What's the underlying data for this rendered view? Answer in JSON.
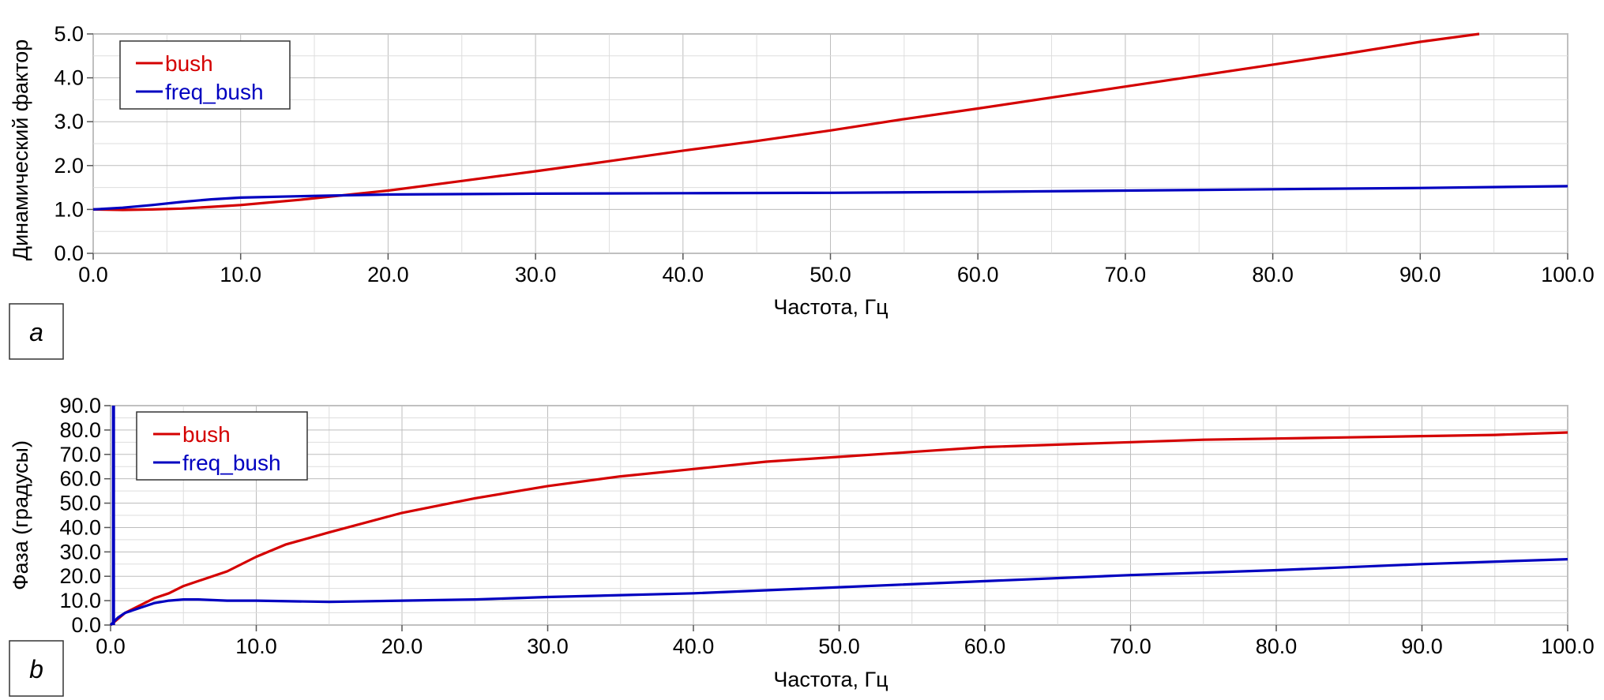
{
  "chart_data": [
    {
      "panel_label": "a",
      "type": "line",
      "xlabel": "Частота, Гц",
      "ylabel": "Динамический фактор",
      "xlim": [
        0,
        100
      ],
      "ylim": [
        0,
        5
      ],
      "x_ticks": [
        "0.0",
        "10.0",
        "20.0",
        "30.0",
        "40.0",
        "50.0",
        "60.0",
        "70.0",
        "80.0",
        "90.0",
        "100.0"
      ],
      "y_ticks": [
        "0.0",
        "1.0",
        "2.0",
        "3.0",
        "4.0",
        "5.0"
      ],
      "grid": true,
      "legend_position": "top-left",
      "series": [
        {
          "name": "bush",
          "color": "#d40000",
          "x": [
            0,
            2,
            4,
            6,
            8,
            10,
            12,
            14,
            16,
            18,
            20,
            25,
            30,
            35,
            40,
            45,
            50,
            55,
            60,
            65,
            70,
            75,
            80,
            85,
            90,
            94
          ],
          "y": [
            1.0,
            0.99,
            1.0,
            1.02,
            1.06,
            1.1,
            1.16,
            1.22,
            1.29,
            1.36,
            1.43,
            1.65,
            1.87,
            2.1,
            2.34,
            2.56,
            2.8,
            3.06,
            3.3,
            3.55,
            3.8,
            4.05,
            4.3,
            4.55,
            4.82,
            5.0
          ]
        },
        {
          "name": "freq_bush",
          "color": "#0000c0",
          "x": [
            0,
            2,
            4,
            6,
            8,
            10,
            15,
            20,
            30,
            40,
            50,
            60,
            70,
            80,
            90,
            100
          ],
          "y": [
            1.0,
            1.04,
            1.1,
            1.17,
            1.23,
            1.27,
            1.31,
            1.34,
            1.36,
            1.37,
            1.38,
            1.4,
            1.43,
            1.46,
            1.49,
            1.53
          ]
        }
      ]
    },
    {
      "panel_label": "b",
      "type": "line",
      "xlabel": "Частота, Гц",
      "ylabel": "Фаза (градусы)",
      "xlim": [
        0,
        100
      ],
      "ylim": [
        0,
        90
      ],
      "x_ticks": [
        "0.0",
        "10.0",
        "20.0",
        "30.0",
        "40.0",
        "50.0",
        "60.0",
        "70.0",
        "80.0",
        "90.0",
        "100.0"
      ],
      "y_ticks": [
        "0.0",
        "10.0",
        "20.0",
        "30.0",
        "40.0",
        "50.0",
        "60.0",
        "70.0",
        "80.0",
        "90.0"
      ],
      "grid": true,
      "legend_position": "top-left",
      "series": [
        {
          "name": "bush",
          "color": "#d40000",
          "x": [
            0,
            1,
            2,
            3,
            4,
            5,
            6,
            8,
            10,
            12,
            15,
            20,
            25,
            30,
            35,
            40,
            45,
            50,
            55,
            60,
            65,
            70,
            75,
            80,
            85,
            90,
            95,
            100
          ],
          "y": [
            0,
            5,
            8,
            11,
            13,
            16,
            18,
            22,
            28,
            33,
            38,
            46,
            52,
            57,
            61,
            64,
            67,
            69,
            71,
            73,
            74,
            75,
            76,
            76.5,
            77,
            77.5,
            78,
            79
          ]
        },
        {
          "name": "freq_bush",
          "color": "#0000c0",
          "x": [
            0,
            0.5,
            1,
            2,
            3,
            4,
            5,
            6,
            8,
            10,
            15,
            20,
            25,
            30,
            40,
            50,
            60,
            70,
            80,
            90,
            100
          ],
          "y": [
            0,
            3,
            5,
            7,
            9,
            10,
            10.5,
            10.5,
            10,
            10,
            9.5,
            10,
            10.5,
            11.5,
            13,
            15.5,
            18,
            20.5,
            22.5,
            25,
            27
          ]
        }
      ],
      "extra_marks": [
        {
          "series": "freq_bush",
          "kind": "vertical spike",
          "x": 0.2,
          "y_from": 0,
          "y_to": 90
        }
      ]
    }
  ]
}
